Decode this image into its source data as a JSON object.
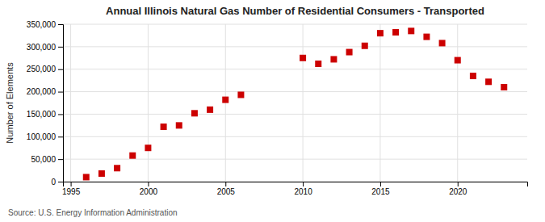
{
  "chart_data": {
    "type": "scatter",
    "title": "Annual Illinois Natural Gas Number of Residential Consumers - Transported",
    "ylabel": "Number of Elements",
    "annotations": [
      "Source: U.S. Energy Information Administration"
    ],
    "x": [
      1996,
      1997,
      1998,
      1999,
      2000,
      2001,
      2002,
      2003,
      2004,
      2005,
      2006,
      2010,
      2011,
      2012,
      2013,
      2014,
      2015,
      2016,
      2017,
      2018,
      2019,
      2020,
      2021,
      2022,
      2023
    ],
    "values": [
      10000,
      18000,
      30000,
      58000,
      75000,
      122000,
      125000,
      152000,
      160000,
      182000,
      193000,
      275000,
      262000,
      272000,
      288000,
      302000,
      330000,
      332000,
      335000,
      322000,
      308000,
      270000,
      235000,
      222000,
      210000
    ],
    "color": "#cc0000",
    "marker": "square",
    "xlim": [
      1994.5,
      2024.5
    ],
    "xticks": [
      1995,
      2000,
      2005,
      2010,
      2015,
      2020
    ],
    "ylim": [
      0,
      350000
    ],
    "yticks": [
      0,
      {
        "value": 50000,
        "label": "50,000"
      },
      {
        "value": 100000,
        "label": "100,000"
      },
      {
        "value": 150000,
        "label": "150,000"
      },
      {
        "value": 200000,
        "label": "200,000"
      },
      {
        "value": 250000,
        "label": "250,000"
      },
      {
        "value": 300000,
        "label": "300,000"
      },
      {
        "value": 350000,
        "label": "350,000"
      }
    ],
    "grid": true
  }
}
